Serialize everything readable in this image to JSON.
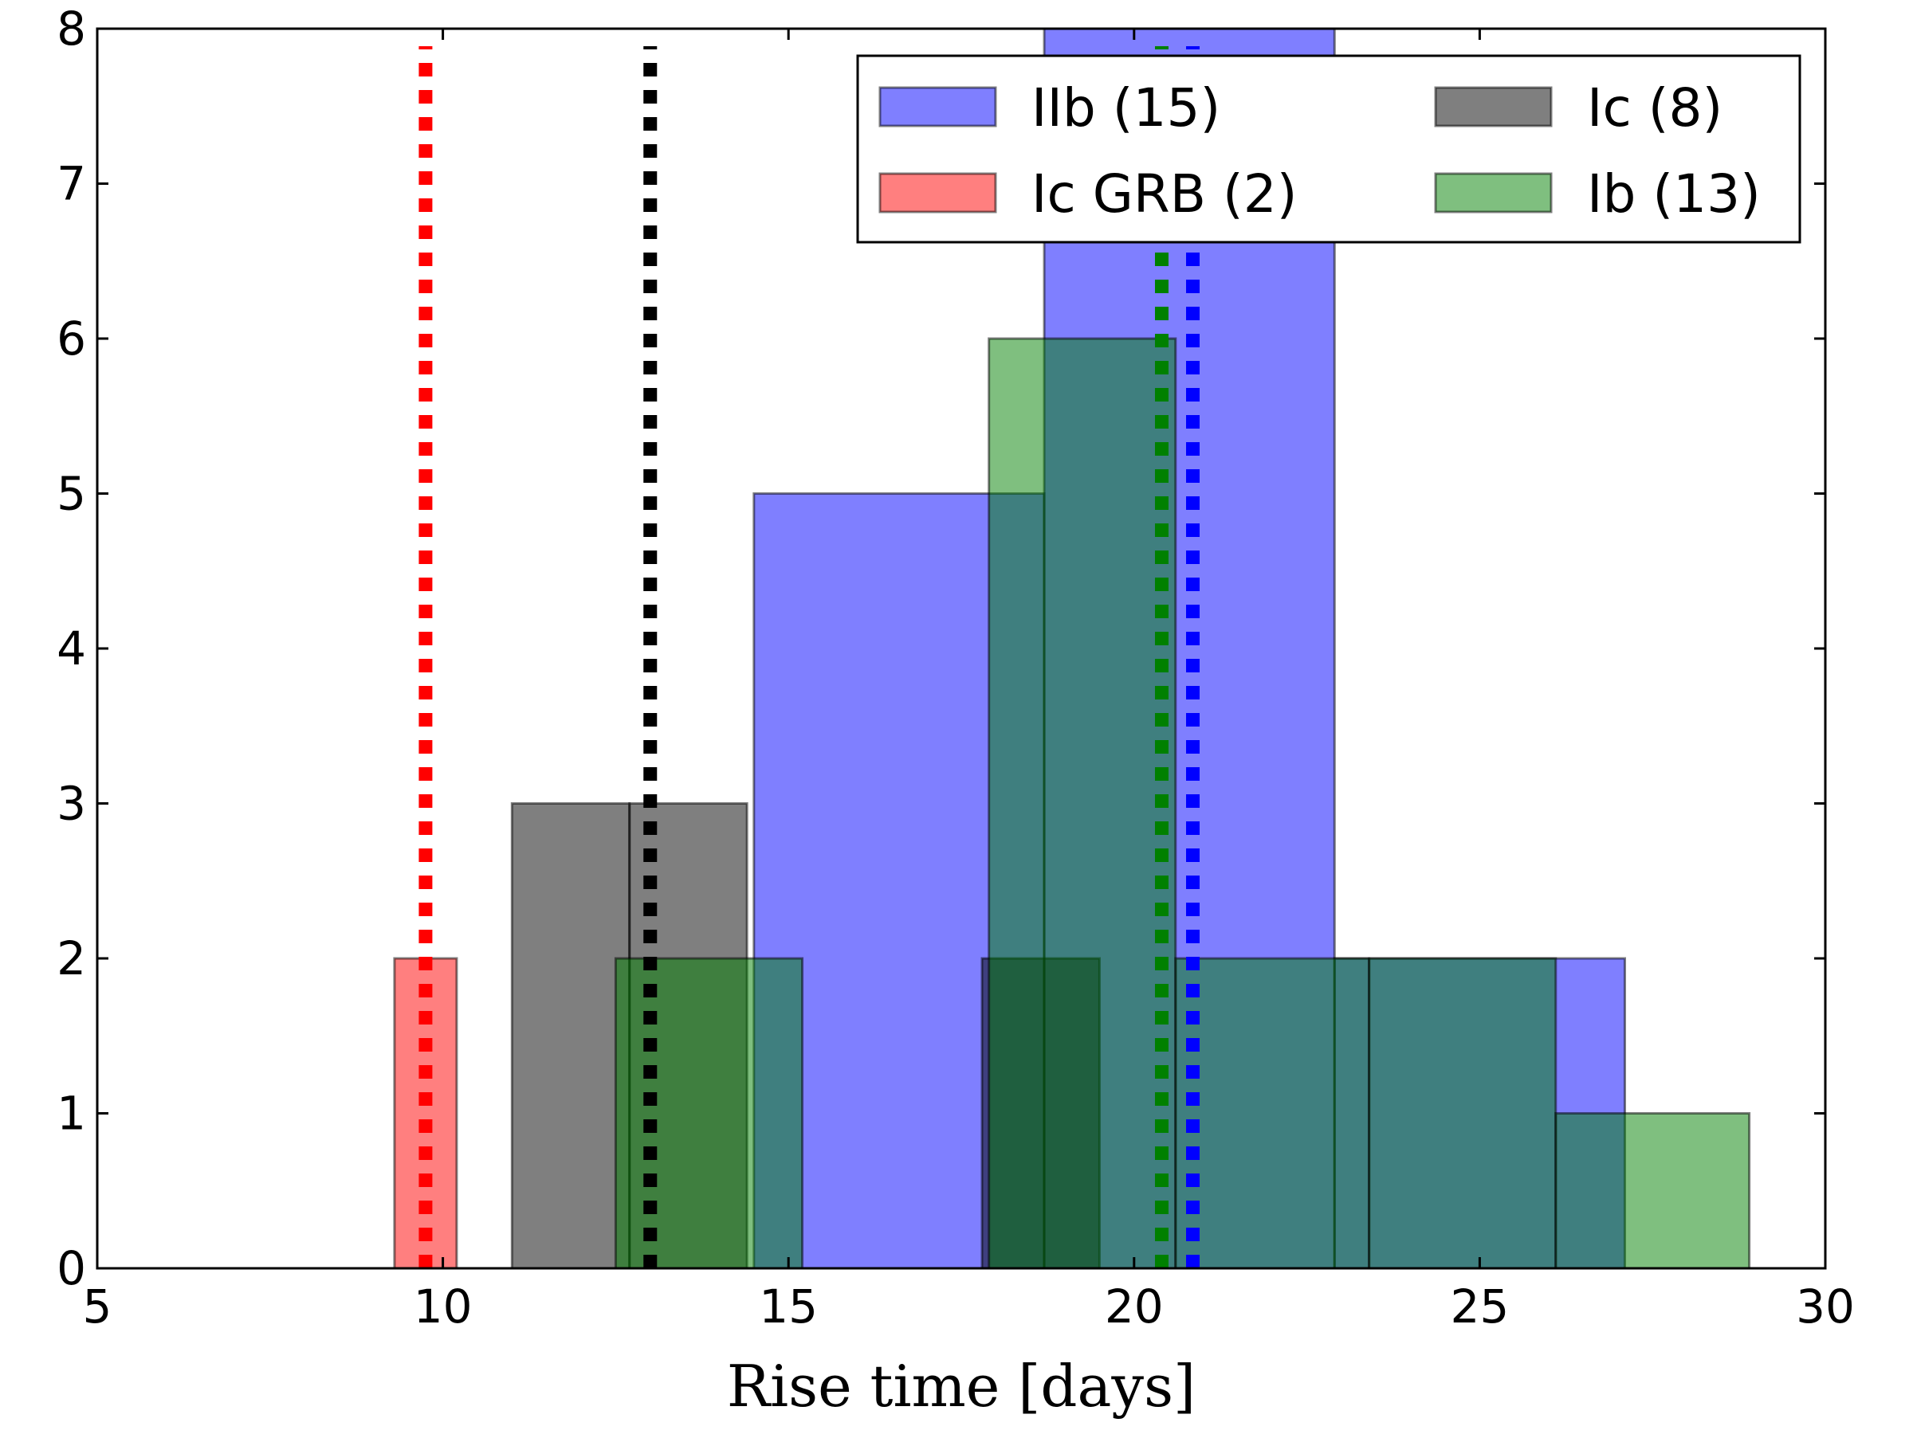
{
  "chart_data": {
    "type": "histogram",
    "xlabel": "Rise time [days]",
    "ylabel": "",
    "xlim": [
      5,
      30
    ],
    "ylim": [
      0,
      8
    ],
    "xticks": [
      "5",
      "10",
      "15",
      "20",
      "25",
      "30"
    ],
    "yticks": [
      "0",
      "1",
      "2",
      "3",
      "4",
      "5",
      "6",
      "7",
      "8"
    ],
    "grid": false,
    "legend": {
      "placement": "top-right",
      "columns": 2,
      "entries": [
        {
          "label": "IIb (15)",
          "color": "#0000ff"
        },
        {
          "label": "Ic (8)",
          "color": "#000000"
        },
        {
          "label": "Ic GRB (2)",
          "color": "#ff0000"
        },
        {
          "label": "Ib (13)",
          "color": "#008000"
        }
      ]
    },
    "series": [
      {
        "name": "IIb (15)",
        "color": "#0000ff",
        "bins": [
          {
            "x0": 14.5,
            "x1": 18.7,
            "count": 5
          },
          {
            "x0": 18.7,
            "x1": 22.9,
            "count": 8
          },
          {
            "x0": 22.9,
            "x1": 27.1,
            "count": 2
          }
        ]
      },
      {
        "name": "Ic GRB (2)",
        "color": "#ff0000",
        "bins": [
          {
            "x0": 9.3,
            "x1": 10.2,
            "count": 2
          }
        ]
      },
      {
        "name": "Ic (8)",
        "color": "#000000",
        "bins": [
          {
            "x0": 11.0,
            "x1": 12.7,
            "count": 3
          },
          {
            "x0": 12.7,
            "x1": 14.4,
            "count": 3
          },
          {
            "x0": 17.8,
            "x1": 19.5,
            "count": 2
          }
        ]
      },
      {
        "name": "Ib (13)",
        "color": "#008000",
        "bins": [
          {
            "x0": 12.5,
            "x1": 15.2,
            "count": 2
          },
          {
            "x0": 17.9,
            "x1": 20.6,
            "count": 6
          },
          {
            "x0": 20.6,
            "x1": 23.4,
            "count": 2
          },
          {
            "x0": 23.4,
            "x1": 26.1,
            "count": 2
          },
          {
            "x0": 26.1,
            "x1": 28.9,
            "count": 1
          }
        ]
      }
    ],
    "mean_lines": [
      {
        "series": "Ic GRB (2)",
        "x": 9.75,
        "color": "#ff0000"
      },
      {
        "series": "Ic (8)",
        "x": 13.0,
        "color": "#000000"
      },
      {
        "series": "Ib (13)",
        "x": 20.4,
        "color": "#008000"
      },
      {
        "series": "IIb (15)",
        "x": 20.85,
        "color": "#0000ff"
      }
    ]
  }
}
